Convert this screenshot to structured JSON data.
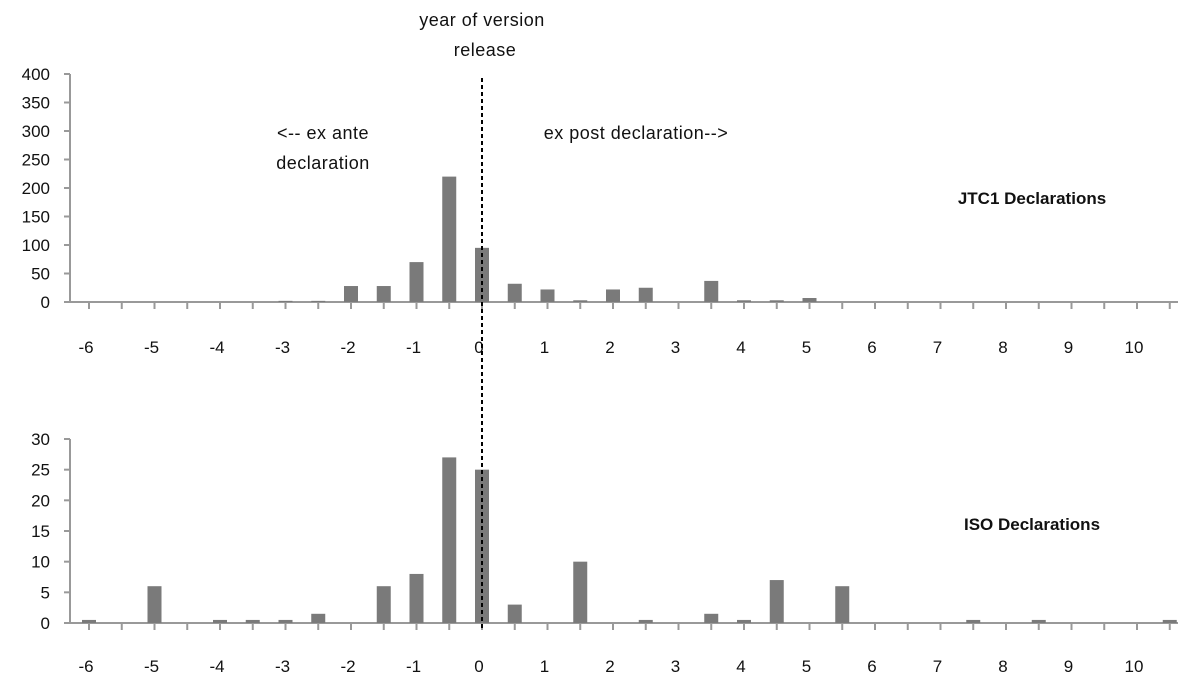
{
  "colors": {
    "bar": "#7a7a7a",
    "axis": "#999999",
    "marker": "#000000"
  },
  "annotations": {
    "release_line1": "year of version",
    "release_line2": "release",
    "exante_line1": "<-- ex ante",
    "exante_line2": "declaration",
    "expost": "ex post declaration-->"
  },
  "chart_data": [
    {
      "type": "bar",
      "label": "JTC1 Declarations",
      "x_tick_labels": [
        "-6",
        "-5",
        "-4",
        "-3",
        "-2",
        "-1",
        "0",
        "1",
        "2",
        "3",
        "4",
        "5",
        "6",
        "7",
        "8",
        "9",
        "10"
      ],
      "y_tick_labels": [
        "0",
        "50",
        "100",
        "150",
        "200",
        "250",
        "300",
        "350",
        "400"
      ],
      "ylim": [
        0,
        400
      ],
      "x": [
        -3,
        -2.5,
        -2,
        -1.5,
        -1,
        -0.5,
        0,
        0.5,
        1,
        1.5,
        2,
        2.5,
        3.5,
        4,
        4.5,
        5
      ],
      "values": [
        2,
        2,
        28,
        28,
        70,
        220,
        95,
        32,
        22,
        3,
        22,
        25,
        37,
        3,
        3,
        7
      ]
    },
    {
      "type": "bar",
      "label": "ISO Declarations",
      "x_tick_labels": [
        "-6",
        "-5",
        "-4",
        "-3",
        "-2",
        "-1",
        "0",
        "1",
        "2",
        "3",
        "4",
        "5",
        "6",
        "7",
        "8",
        "9",
        "10"
      ],
      "y_tick_labels": [
        "0",
        "5",
        "10",
        "15",
        "20",
        "25",
        "30"
      ],
      "ylim": [
        0,
        30
      ],
      "x": [
        -6,
        -5,
        -4,
        -3.5,
        -3,
        -2.5,
        -1.5,
        -1,
        -0.5,
        0,
        0.5,
        1.5,
        2.5,
        3.5,
        4,
        4.5,
        5.5,
        7.5,
        8.5,
        10.5
      ],
      "values": [
        0.5,
        6,
        0.5,
        0.5,
        0.5,
        1.5,
        6,
        8,
        27,
        25,
        3,
        10,
        0.5,
        1.5,
        0.5,
        7,
        6,
        0.5,
        0.5,
        0.5
      ]
    }
  ]
}
